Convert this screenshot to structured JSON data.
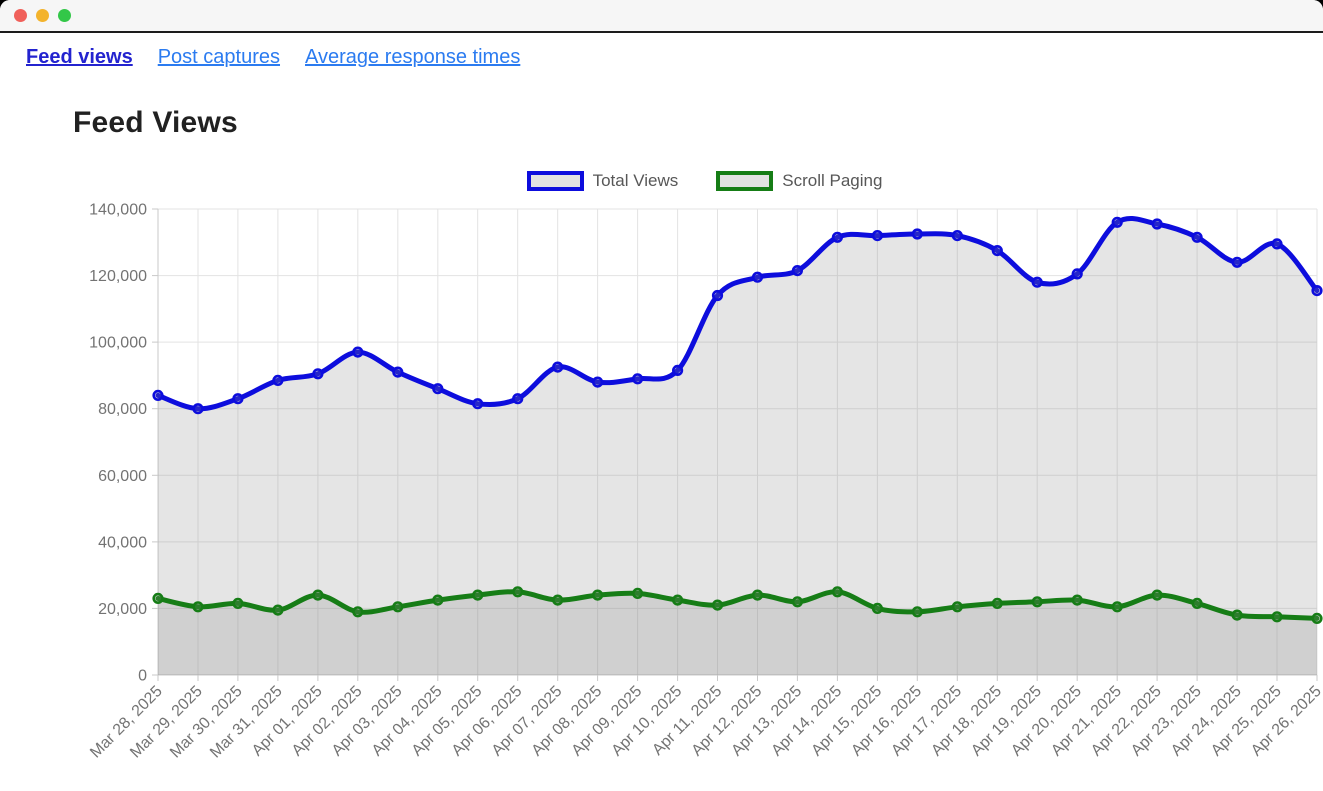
{
  "window": {
    "traffic_lights": {
      "close": "#f0605a",
      "minimize": "#f3b32c",
      "maximize": "#33c748"
    }
  },
  "nav": {
    "active_color": "#2323cf",
    "link_color": "#2b7bf0",
    "links": [
      {
        "label": "Feed views",
        "active": true
      },
      {
        "label": "Post captures",
        "active": false
      },
      {
        "label": "Average response times",
        "active": false
      }
    ]
  },
  "page": {
    "title": "Feed Views"
  },
  "chart_data": {
    "type": "line",
    "title": "Feed Views",
    "categories": [
      "Mar 28, 2025",
      "Mar 29, 2025",
      "Mar 30, 2025",
      "Mar 31, 2025",
      "Apr 01, 2025",
      "Apr 02, 2025",
      "Apr 03, 2025",
      "Apr 04, 2025",
      "Apr 05, 2025",
      "Apr 06, 2025",
      "Apr 07, 2025",
      "Apr 08, 2025",
      "Apr 09, 2025",
      "Apr 10, 2025",
      "Apr 11, 2025",
      "Apr 12, 2025",
      "Apr 13, 2025",
      "Apr 14, 2025",
      "Apr 15, 2025",
      "Apr 16, 2025",
      "Apr 17, 2025",
      "Apr 18, 2025",
      "Apr 19, 2025",
      "Apr 20, 2025",
      "Apr 21, 2025",
      "Apr 22, 2025",
      "Apr 23, 2025",
      "Apr 24, 2025",
      "Apr 25, 2025",
      "Apr 26, 2025"
    ],
    "series": [
      {
        "name": "Total Views",
        "color": "#0d0ddd",
        "values": [
          84000,
          80000,
          83000,
          88500,
          90500,
          97000,
          91000,
          86000,
          81500,
          83000,
          92500,
          88000,
          89000,
          91500,
          114000,
          119500,
          121500,
          131500,
          132000,
          132500,
          132000,
          127500,
          118000,
          120500,
          136000,
          135500,
          131500,
          124000,
          129500,
          115500
        ]
      },
      {
        "name": "Scroll Paging",
        "color": "#167d16",
        "values": [
          23000,
          20500,
          21500,
          19500,
          24000,
          19000,
          20500,
          22500,
          24000,
          25000,
          22500,
          24000,
          24500,
          22500,
          21000,
          24000,
          22000,
          25000,
          20000,
          19000,
          20500,
          21500,
          22000,
          22500,
          20500,
          24000,
          21500,
          18000,
          17500,
          17000
        ]
      }
    ],
    "ylim": [
      0,
      140000
    ],
    "y_tick_step": 20000,
    "y_tick_labels": [
      "0",
      "20,000",
      "40,000",
      "60,000",
      "80,000",
      "100,000",
      "120,000",
      "140,000"
    ],
    "x_tick_rotation": -45,
    "grid": true,
    "legend_position": "top",
    "area_fill": "rgba(132,132,132,0.21)",
    "grid_color": "#e3e3e3",
    "axis_color": "#c9c9c9",
    "tick_label_color": "#737373",
    "legend_text_color": "#575757",
    "legend_swatch_fill": "#e2e2e2"
  }
}
